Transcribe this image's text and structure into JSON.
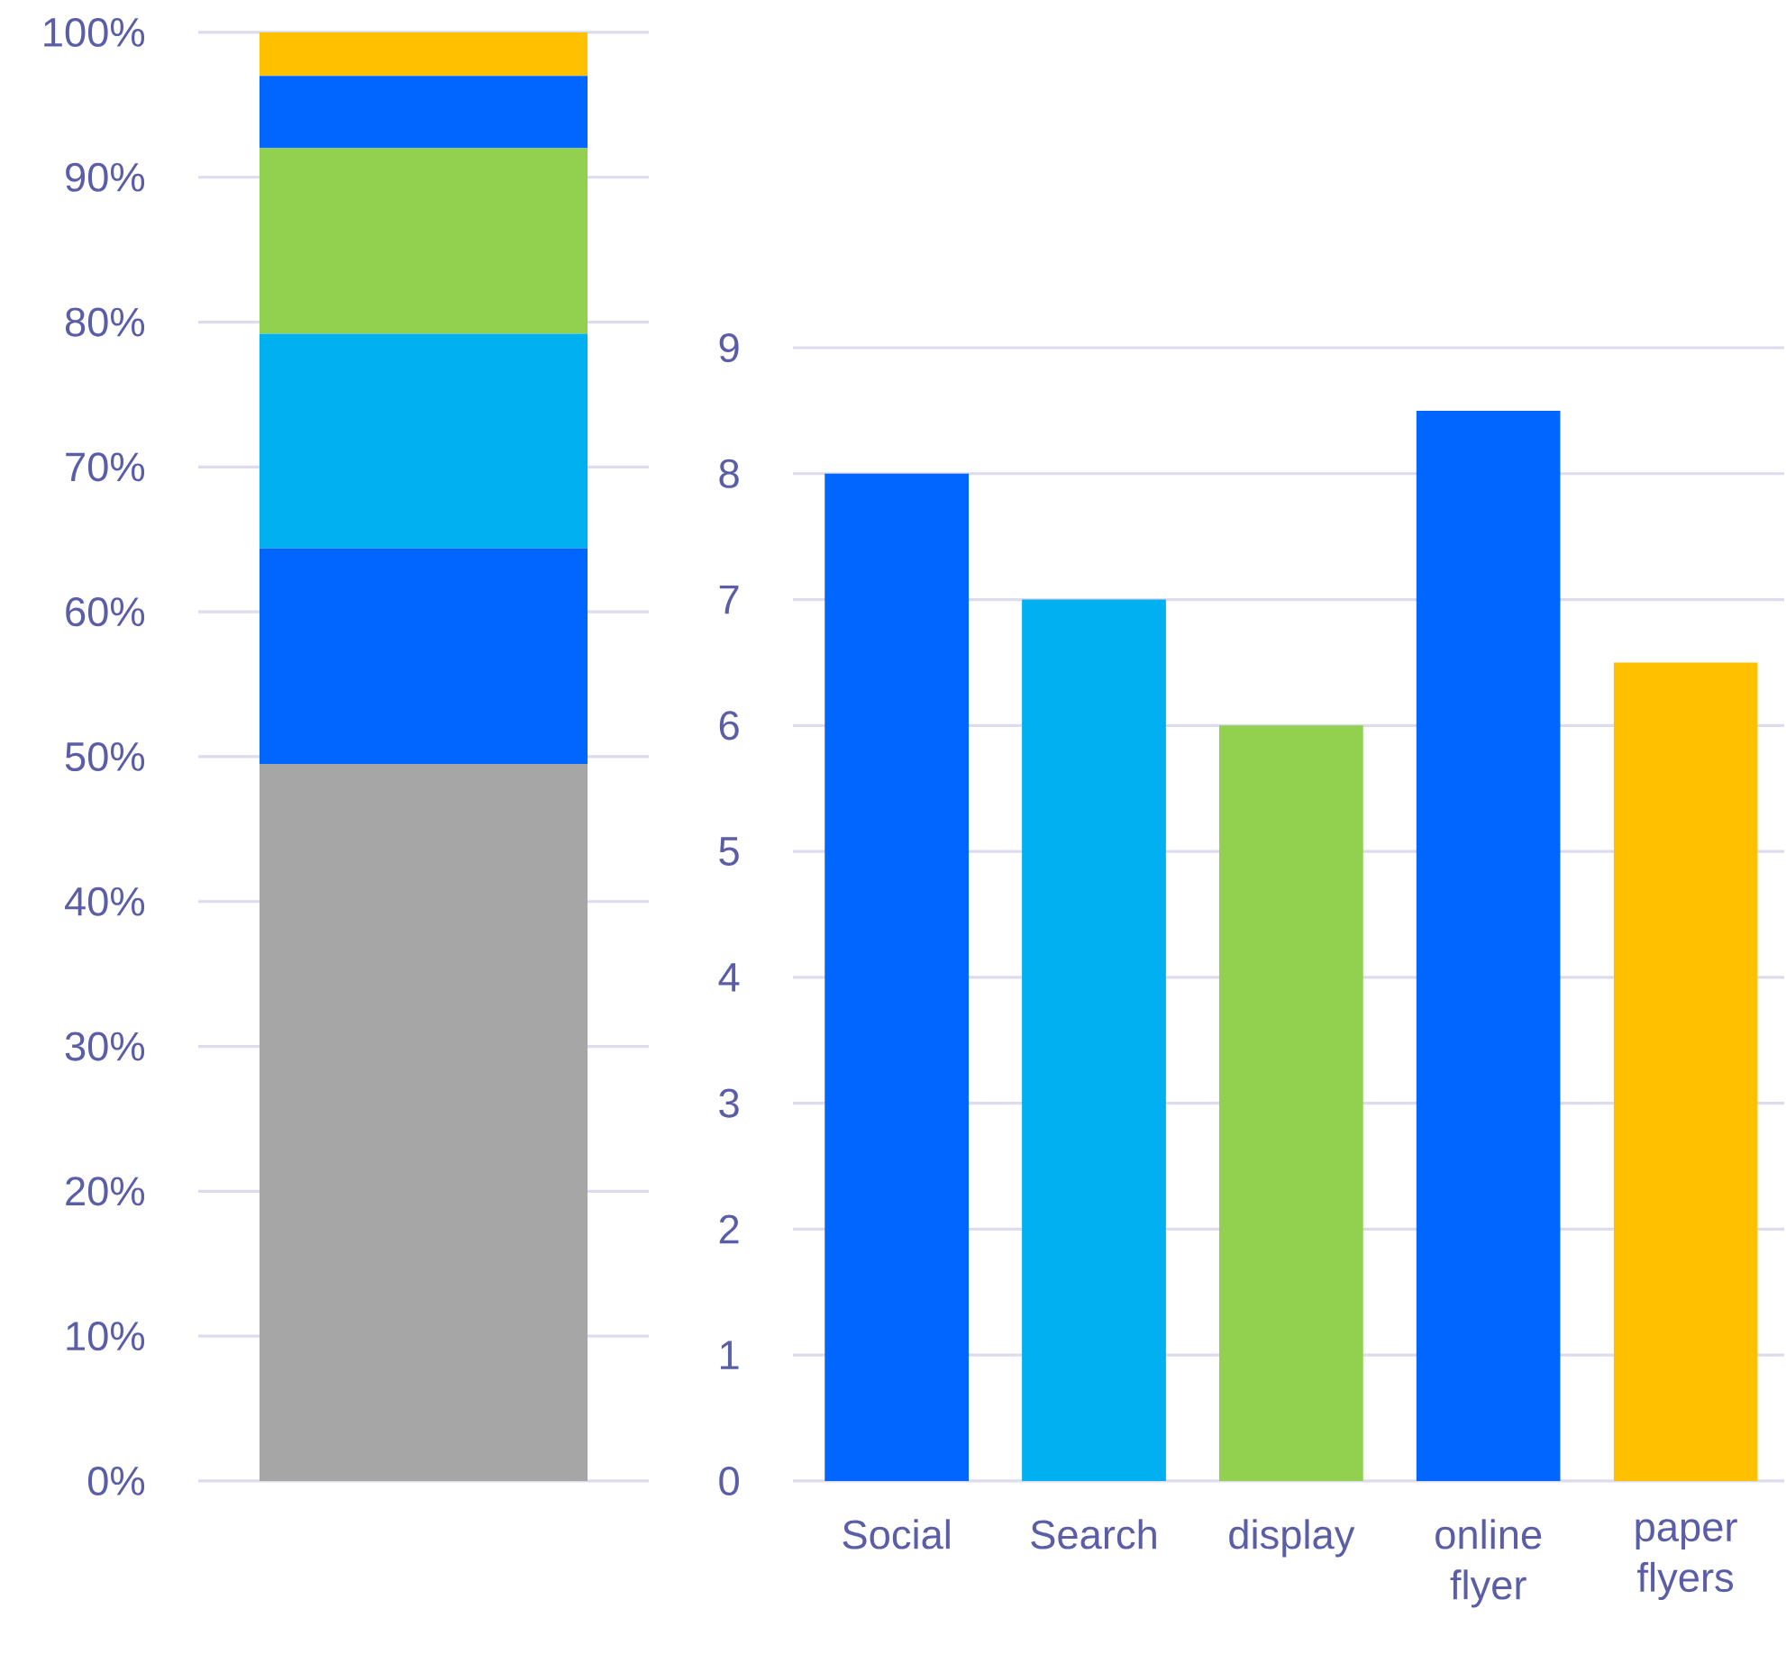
{
  "chart_data": [
    {
      "type": "bar",
      "stacked": true,
      "categories": [
        null
      ],
      "grid": "y",
      "series": [
        {
          "color": "#a6a6a6",
          "values": [
            49.5
          ]
        },
        {
          "color": "#0066ff",
          "values": [
            14.9
          ]
        },
        {
          "color": "#00b0f0",
          "values": [
            14.8
          ]
        },
        {
          "color": "#92d050",
          "values": [
            12.8
          ]
        },
        {
          "color": "#0066ff",
          "values": [
            5.0
          ]
        },
        {
          "color": "#ffc000",
          "values": [
            3.0
          ]
        }
      ],
      "ylim": [
        0,
        100
      ],
      "yticks": [
        {
          "value": 0,
          "label": "0%"
        },
        {
          "value": 10,
          "label": "10%"
        },
        {
          "value": 20,
          "label": "20%"
        },
        {
          "value": 30,
          "label": "30%"
        },
        {
          "value": 40,
          "label": "40%"
        },
        {
          "value": 50,
          "label": "50%"
        },
        {
          "value": 60,
          "label": "60%"
        },
        {
          "value": 70,
          "label": "70%"
        },
        {
          "value": 80,
          "label": "80%"
        },
        {
          "value": 90,
          "label": "90%"
        },
        {
          "value": 100,
          "label": "100%"
        }
      ]
    },
    {
      "type": "bar",
      "grid": "y",
      "categories": [
        "Social",
        "Search",
        "display",
        "online flyer",
        "paper flyers"
      ],
      "values": [
        8,
        7,
        6,
        8.5,
        6.5
      ],
      "colors": [
        "#0066ff",
        "#00b0f0",
        "#92d050",
        "#0066ff",
        "#ffc000"
      ],
      "ylim": [
        0,
        9
      ],
      "yticks": [
        0,
        1,
        2,
        3,
        4,
        5,
        6,
        7,
        8,
        9
      ]
    }
  ]
}
